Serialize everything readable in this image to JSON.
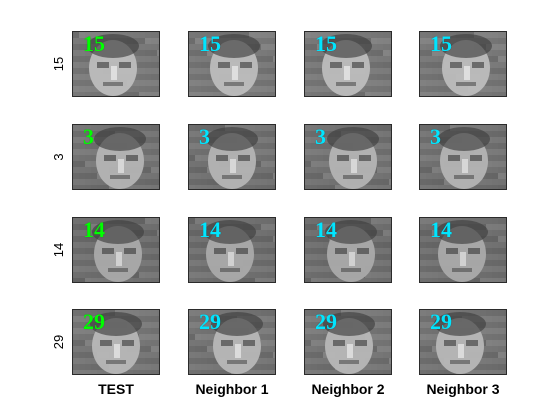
{
  "figure": {
    "column_labels": [
      "TEST",
      "Neighbor 1",
      "Neighbor 2",
      "Neighbor 3"
    ],
    "row_labels": [
      "15",
      "3",
      "14",
      "29"
    ],
    "colors": {
      "test_label": "#00ff00",
      "neighbor_label": "#00e5ff",
      "tile_border": "#2b2b2b"
    },
    "grid": [
      [
        {
          "label": "15",
          "kind": "test"
        },
        {
          "label": "15",
          "kind": "neighbor"
        },
        {
          "label": "15",
          "kind": "neighbor"
        },
        {
          "label": "15",
          "kind": "neighbor"
        }
      ],
      [
        {
          "label": "3",
          "kind": "test"
        },
        {
          "label": "3",
          "kind": "neighbor"
        },
        {
          "label": "3",
          "kind": "neighbor"
        },
        {
          "label": "3",
          "kind": "neighbor"
        }
      ],
      [
        {
          "label": "14",
          "kind": "test"
        },
        {
          "label": "14",
          "kind": "neighbor"
        },
        {
          "label": "14",
          "kind": "neighbor"
        },
        {
          "label": "14",
          "kind": "neighbor"
        }
      ],
      [
        {
          "label": "29",
          "kind": "test"
        },
        {
          "label": "29",
          "kind": "neighbor"
        },
        {
          "label": "29",
          "kind": "neighbor"
        },
        {
          "label": "29",
          "kind": "neighbor"
        }
      ]
    ]
  }
}
